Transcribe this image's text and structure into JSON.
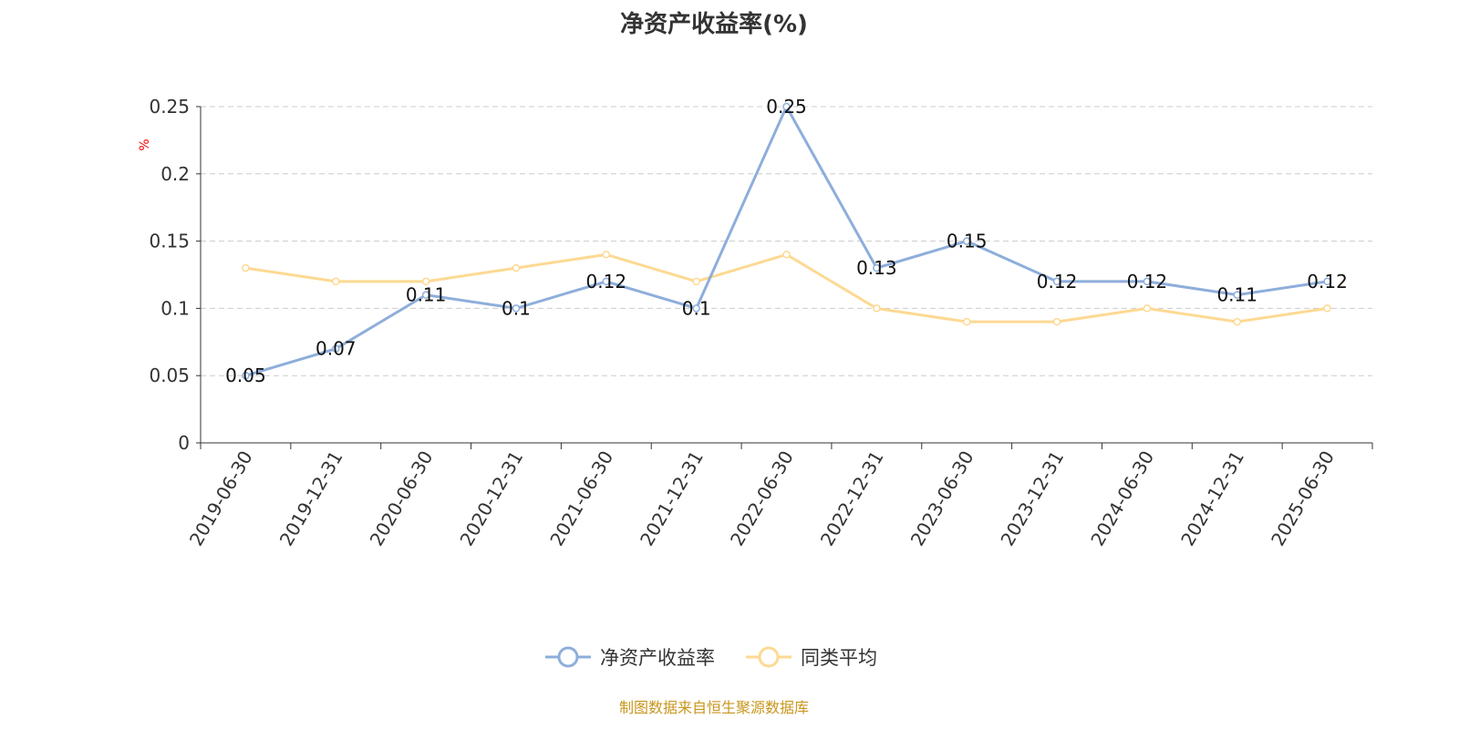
{
  "chart_data": {
    "type": "line",
    "title": "净资产收益率(%)",
    "ylabel": "%",
    "xlabel": "",
    "ylim": [
      0,
      0.25
    ],
    "yticks": [
      "0",
      "0.05",
      "0.1",
      "0.15",
      "0.2",
      "0.25"
    ],
    "grid": true,
    "legend_position": "bottom",
    "categories": [
      "2019-06-30",
      "2019-12-31",
      "2020-06-30",
      "2020-12-31",
      "2021-06-30",
      "2021-12-31",
      "2022-06-30",
      "2022-12-31",
      "2023-06-30",
      "2023-12-31",
      "2024-06-30",
      "2024-12-31",
      "2025-06-30"
    ],
    "series": [
      {
        "name": "净资产收益率",
        "color": "#8eaedb",
        "labels": true,
        "values": [
          0.05,
          0.07,
          0.11,
          0.1,
          0.12,
          0.1,
          0.25,
          0.13,
          0.15,
          0.12,
          0.12,
          0.11,
          0.12
        ]
      },
      {
        "name": "同类平均",
        "color": "#fdd992",
        "labels": false,
        "values": [
          0.13,
          0.12,
          0.12,
          0.13,
          0.14,
          0.12,
          0.14,
          0.1,
          0.09,
          0.09,
          0.1,
          0.09,
          0.1
        ]
      }
    ]
  },
  "footer": "制图数据来自恒生聚源数据库",
  "colors": {
    "ylabel": "#ff0000",
    "footer": "#c8961e"
  }
}
